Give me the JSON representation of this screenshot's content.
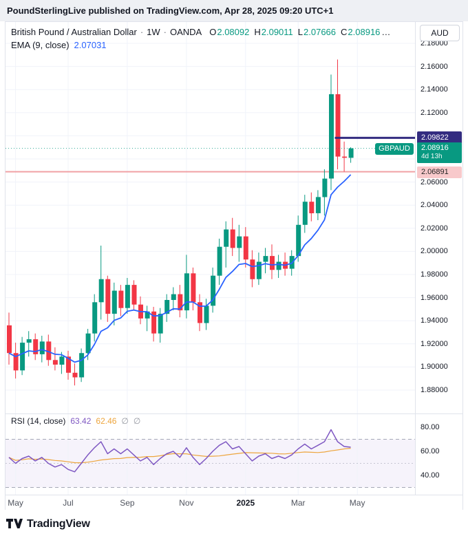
{
  "banner": {
    "text": "PoundSterlingLive published on TradingView.com, Apr 28, 2025 09:20 UTC+1"
  },
  "legend": {
    "title": "British Pound / Australian Dollar",
    "sep": "·",
    "interval": "1W",
    "exchange": "OANDA",
    "ohlc": [
      {
        "label": "O",
        "value": "2.08092"
      },
      {
        "label": "H",
        "value": "2.09011"
      },
      {
        "label": "L",
        "value": "2.07666"
      },
      {
        "label": "C",
        "value": "2.08916"
      }
    ],
    "ellipsis": "…",
    "ema_label": "EMA (9, close)",
    "ema_value": "2.07031"
  },
  "axis": {
    "currency": "AUD",
    "price_ticks": [
      "2.18000",
      "2.16000",
      "2.14000",
      "2.12000",
      "2.06000",
      "2.04000",
      "2.02000",
      "2.00000",
      "1.98000",
      "1.96000",
      "1.94000",
      "1.92000",
      "1.90000",
      "1.88000"
    ],
    "rsi_ticks": [
      "80.00",
      "60.00",
      "40.00"
    ],
    "time_ticks": [
      {
        "label": "May",
        "index": 1,
        "bold": false
      },
      {
        "label": "Jul",
        "index": 9,
        "bold": false
      },
      {
        "label": "Sep",
        "index": 18,
        "bold": false
      },
      {
        "label": "Nov",
        "index": 27,
        "bold": false
      },
      {
        "label": "2025",
        "index": 36,
        "bold": true
      },
      {
        "label": "Mar",
        "index": 44,
        "bold": false
      },
      {
        "label": "May",
        "index": 53,
        "bold": false
      }
    ],
    "price_labels": {
      "ray": {
        "text": "2.09822",
        "price": 2.09822
      },
      "current": {
        "text": "2.08916",
        "countdown": "4d 13h",
        "price": 2.08916
      },
      "support": {
        "text": "2.06891",
        "price": 2.06891
      },
      "symbol_badge": "GBPAUD"
    }
  },
  "rsi": {
    "label": "RSI (14, close)",
    "value": "63.42",
    "ma_value": "62.46",
    "hidden_plot_icons": [
      "∅",
      "∅"
    ]
  },
  "footer": {
    "brand": "TradingView"
  },
  "colors": {
    "up": "#089981",
    "down": "#f23645",
    "ema": "#2962ff",
    "ray": "#332c80",
    "support_line": "#f1a0a4",
    "support_label_bg": "#f8c9cb",
    "rsi": "#7e57c2",
    "rsi_ma": "#eda53d",
    "grid": "#f0f3fa",
    "band": "#a5a8b6",
    "text": "#131722",
    "muted": "#787b86"
  },
  "chart_data": {
    "type": "candlestick",
    "title": "British Pound / Australian Dollar, 1W, OANDA",
    "symbol": "GBPAUD",
    "interval": "1W",
    "ylabel": "AUD",
    "price_range": [
      1.88,
      2.18
    ],
    "x_range": [
      "2024-04-29",
      "2025-05-05"
    ],
    "candles": [
      {
        "t": "2024-04-29",
        "o": 1.936,
        "h": 1.947,
        "l": 1.902,
        "c": 1.912
      },
      {
        "t": "2024-05-06",
        "o": 1.912,
        "h": 1.921,
        "l": 1.89,
        "c": 1.897
      },
      {
        "t": "2024-05-13",
        "o": 1.897,
        "h": 1.926,
        "l": 1.893,
        "c": 1.921
      },
      {
        "t": "2024-05-20",
        "o": 1.921,
        "h": 1.931,
        "l": 1.909,
        "c": 1.924
      },
      {
        "t": "2024-05-27",
        "o": 1.924,
        "h": 1.929,
        "l": 1.906,
        "c": 1.911
      },
      {
        "t": "2024-06-03",
        "o": 1.911,
        "h": 1.927,
        "l": 1.904,
        "c": 1.922
      },
      {
        "t": "2024-06-10",
        "o": 1.922,
        "h": 1.928,
        "l": 1.901,
        "c": 1.906
      },
      {
        "t": "2024-06-17",
        "o": 1.906,
        "h": 1.917,
        "l": 1.897,
        "c": 1.902
      },
      {
        "t": "2024-06-24",
        "o": 1.902,
        "h": 1.913,
        "l": 1.894,
        "c": 1.909
      },
      {
        "t": "2024-07-01",
        "o": 1.909,
        "h": 1.914,
        "l": 1.889,
        "c": 1.895
      },
      {
        "t": "2024-07-08",
        "o": 1.895,
        "h": 1.903,
        "l": 1.884,
        "c": 1.891
      },
      {
        "t": "2024-07-15",
        "o": 1.891,
        "h": 1.916,
        "l": 1.887,
        "c": 1.912
      },
      {
        "t": "2024-07-22",
        "o": 1.912,
        "h": 1.933,
        "l": 1.906,
        "c": 1.929
      },
      {
        "t": "2024-07-29",
        "o": 1.929,
        "h": 1.963,
        "l": 1.922,
        "c": 1.956
      },
      {
        "t": "2024-08-05",
        "o": 1.956,
        "h": 2.005,
        "l": 1.941,
        "c": 1.976
      },
      {
        "t": "2024-08-12",
        "o": 1.976,
        "h": 1.979,
        "l": 1.939,
        "c": 1.946
      },
      {
        "t": "2024-08-19",
        "o": 1.946,
        "h": 1.973,
        "l": 1.936,
        "c": 1.966
      },
      {
        "t": "2024-08-26",
        "o": 1.966,
        "h": 1.971,
        "l": 1.944,
        "c": 1.951
      },
      {
        "t": "2024-09-02",
        "o": 1.951,
        "h": 1.977,
        "l": 1.946,
        "c": 1.971
      },
      {
        "t": "2024-09-09",
        "o": 1.971,
        "h": 1.975,
        "l": 1.949,
        "c": 1.954
      },
      {
        "t": "2024-09-16",
        "o": 1.954,
        "h": 1.961,
        "l": 1.937,
        "c": 1.942
      },
      {
        "t": "2024-09-23",
        "o": 1.942,
        "h": 1.953,
        "l": 1.931,
        "c": 1.948
      },
      {
        "t": "2024-09-30",
        "o": 1.948,
        "h": 1.952,
        "l": 1.922,
        "c": 1.929
      },
      {
        "t": "2024-10-07",
        "o": 1.929,
        "h": 1.951,
        "l": 1.921,
        "c": 1.946
      },
      {
        "t": "2024-10-14",
        "o": 1.946,
        "h": 1.963,
        "l": 1.939,
        "c": 1.958
      },
      {
        "t": "2024-10-21",
        "o": 1.958,
        "h": 1.969,
        "l": 1.949,
        "c": 1.963
      },
      {
        "t": "2024-10-28",
        "o": 1.963,
        "h": 1.971,
        "l": 1.943,
        "c": 1.949
      },
      {
        "t": "2024-11-04",
        "o": 1.949,
        "h": 1.997,
        "l": 1.942,
        "c": 1.981
      },
      {
        "t": "2024-11-11",
        "o": 1.981,
        "h": 1.986,
        "l": 1.949,
        "c": 1.956
      },
      {
        "t": "2024-11-18",
        "o": 1.956,
        "h": 1.963,
        "l": 1.931,
        "c": 1.938
      },
      {
        "t": "2024-11-25",
        "o": 1.938,
        "h": 1.959,
        "l": 1.932,
        "c": 1.953
      },
      {
        "t": "2024-12-02",
        "o": 1.953,
        "h": 1.986,
        "l": 1.947,
        "c": 1.979
      },
      {
        "t": "2024-12-09",
        "o": 1.979,
        "h": 2.011,
        "l": 1.971,
        "c": 2.004
      },
      {
        "t": "2024-12-16",
        "o": 2.004,
        "h": 2.026,
        "l": 1.986,
        "c": 2.019
      },
      {
        "t": "2024-12-23",
        "o": 2.019,
        "h": 2.029,
        "l": 1.996,
        "c": 2.003
      },
      {
        "t": "2024-12-30",
        "o": 2.003,
        "h": 2.023,
        "l": 1.991,
        "c": 2.013
      },
      {
        "t": "2025-01-06",
        "o": 2.013,
        "h": 2.021,
        "l": 1.986,
        "c": 1.993
      },
      {
        "t": "2025-01-13",
        "o": 1.993,
        "h": 2.001,
        "l": 1.969,
        "c": 1.976
      },
      {
        "t": "2025-01-20",
        "o": 1.976,
        "h": 1.999,
        "l": 1.971,
        "c": 1.991
      },
      {
        "t": "2025-01-27",
        "o": 1.991,
        "h": 2.003,
        "l": 1.981,
        "c": 1.996
      },
      {
        "t": "2025-02-03",
        "o": 1.996,
        "h": 2.006,
        "l": 1.976,
        "c": 1.984
      },
      {
        "t": "2025-02-10",
        "o": 1.984,
        "h": 1.997,
        "l": 1.977,
        "c": 1.991
      },
      {
        "t": "2025-02-17",
        "o": 1.991,
        "h": 1.999,
        "l": 1.979,
        "c": 1.985
      },
      {
        "t": "2025-02-24",
        "o": 1.985,
        "h": 2.001,
        "l": 1.979,
        "c": 1.996
      },
      {
        "t": "2025-03-03",
        "o": 1.996,
        "h": 2.031,
        "l": 1.991,
        "c": 2.023
      },
      {
        "t": "2025-03-10",
        "o": 2.023,
        "h": 2.049,
        "l": 2.016,
        "c": 2.043
      },
      {
        "t": "2025-03-17",
        "o": 2.043,
        "h": 2.051,
        "l": 2.026,
        "c": 2.033
      },
      {
        "t": "2025-03-24",
        "o": 2.033,
        "h": 2.053,
        "l": 2.027,
        "c": 2.047
      },
      {
        "t": "2025-03-31",
        "o": 2.047,
        "h": 2.071,
        "l": 2.031,
        "c": 2.063
      },
      {
        "t": "2025-04-07",
        "o": 2.063,
        "h": 2.153,
        "l": 2.053,
        "c": 2.136
      },
      {
        "t": "2025-04-14",
        "o": 2.136,
        "h": 2.166,
        "l": 2.071,
        "c": 2.082
      },
      {
        "t": "2025-04-21",
        "o": 2.082,
        "h": 2.095,
        "l": 2.069,
        "c": 2.081
      },
      {
        "t": "2025-04-28",
        "o": 2.08092,
        "h": 2.09011,
        "l": 2.07666,
        "c": 2.08916
      }
    ],
    "overlays": [
      {
        "type": "ema",
        "period": 9,
        "color_key": "ema",
        "last": 2.07031
      },
      {
        "type": "horizontal_ray",
        "price": 2.09822,
        "from_index": 50,
        "color_key": "ray"
      },
      {
        "type": "horizontal_line",
        "price": 2.06891,
        "color_key": "support_line"
      },
      {
        "type": "price_line",
        "price": 2.08916,
        "color_key": "up"
      }
    ],
    "indicator": {
      "type": "rsi",
      "period": 14,
      "last": 63.42,
      "ma_period": 14,
      "ma_last": 62.46,
      "range": [
        40,
        80
      ],
      "levels": [
        70,
        50,
        30
      ],
      "values": [
        55,
        50,
        54,
        56,
        52,
        55,
        50,
        47,
        49,
        45,
        43,
        50,
        57,
        63,
        68,
        58,
        62,
        58,
        62,
        57,
        52,
        55,
        49,
        54,
        58,
        60,
        55,
        63,
        55,
        49,
        54,
        60,
        65,
        68,
        62,
        64,
        58,
        52,
        56,
        58,
        54,
        56,
        54,
        57,
        62,
        66,
        62,
        65,
        68,
        78,
        68,
        64,
        63.42
      ]
    }
  }
}
